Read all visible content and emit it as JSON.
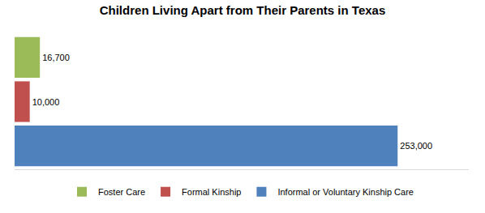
{
  "chart_data": {
    "type": "bar",
    "title": "Children Living Apart from Their Parents in Texas",
    "orientation": "horizontal",
    "categories": [
      null
    ],
    "series": [
      {
        "name": "Foster Care",
        "color": "#9bbb59",
        "values": [
          16700
        ],
        "value_labels": [
          "16,700"
        ]
      },
      {
        "name": "Formal Kinship",
        "color": "#c0504d",
        "values": [
          10000
        ],
        "value_labels": [
          "10,000"
        ]
      },
      {
        "name": "Informal or Voluntary Kinship Care",
        "color": "#4f81bd",
        "values": [
          253000
        ],
        "value_labels": [
          "253,000"
        ]
      }
    ],
    "xlim": [
      0,
      300000
    ],
    "data_labels": true,
    "tick_labels": false,
    "grid": false,
    "legend": "bottom"
  }
}
